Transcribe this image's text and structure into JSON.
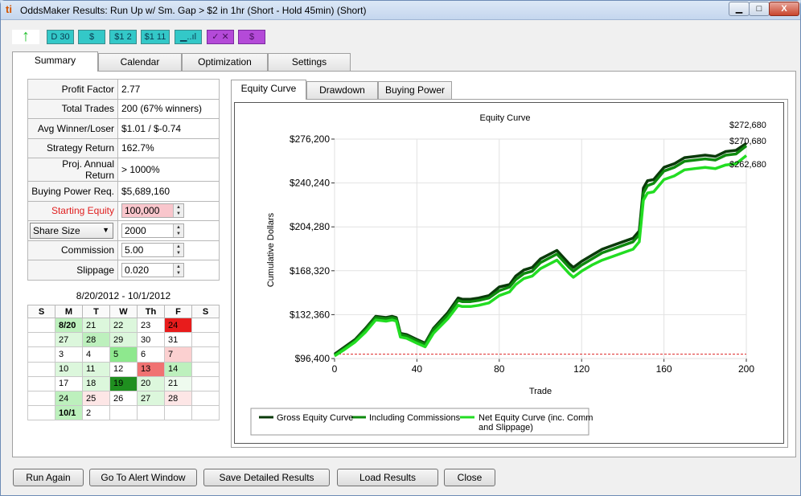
{
  "window": {
    "title": "OddsMaker Results: Run Up w/ Sm. Gap > $2 in 1hr (Short - Hold 45min) (Short)",
    "app_icon_glyph": "ti",
    "min_glyph": "▁",
    "max_glyph": "□",
    "close_glyph": "X"
  },
  "toolbar": {
    "up_glyph": "↑",
    "buttons": [
      {
        "label": "D 30",
        "color": "teal"
      },
      {
        "label": "$",
        "color": "teal"
      },
      {
        "label": "$1 2",
        "color": "teal"
      },
      {
        "label": "$1 11",
        "color": "teal"
      },
      {
        "label": "▁..ıl",
        "color": "teal"
      },
      {
        "label": "✓ ✕",
        "color": "purple"
      },
      {
        "label": "$",
        "color": "purple"
      }
    ]
  },
  "main_tabs": [
    "Summary",
    "Calendar",
    "Optimization",
    "Settings"
  ],
  "stats": {
    "rows": [
      {
        "label": "Profit Factor",
        "value": "2.77"
      },
      {
        "label": "Total Trades",
        "value": "200 (67% winners)"
      },
      {
        "label": "Avg Winner/Loser",
        "value": "$1.01 / $-0.74"
      },
      {
        "label": "Strategy Return",
        "value": "162.7%"
      },
      {
        "label": "Proj. Annual Return",
        "value": "> 1000%"
      },
      {
        "label": "Buying Power Req.",
        "value": "$5,689,160"
      }
    ],
    "starting_equity_label": "Starting Equity",
    "starting_equity": "100,000",
    "share_size_label": "Share Size",
    "share_size": "2000",
    "commission_label": "Commission",
    "commission": "5.00",
    "slippage_label": "Slippage",
    "slippage": "0.020"
  },
  "calendar": {
    "range": "8/20/2012 - 10/1/2012",
    "headers": [
      "S",
      "M",
      "T",
      "W",
      "Th",
      "F",
      "S"
    ],
    "rows": [
      [
        {
          "t": ""
        },
        {
          "t": "8/20",
          "c": "#bdf0bd",
          "b": true
        },
        {
          "t": "21",
          "c": "#dcf7dc"
        },
        {
          "t": "22",
          "c": "#dcf7dc"
        },
        {
          "t": "23",
          "c": "#ffffff"
        },
        {
          "t": "24",
          "c": "#e81c1c"
        },
        {
          "t": ""
        }
      ],
      [
        {
          "t": ""
        },
        {
          "t": "27",
          "c": "#dcf7dc"
        },
        {
          "t": "28",
          "c": "#bdf0bd"
        },
        {
          "t": "29",
          "c": "#dcf7dc"
        },
        {
          "t": "30",
          "c": "#ffffff"
        },
        {
          "t": "31",
          "c": "#ffffff"
        },
        {
          "t": ""
        }
      ],
      [
        {
          "t": ""
        },
        {
          "t": "3",
          "c": "#ffffff"
        },
        {
          "t": "4",
          "c": "#ffffff"
        },
        {
          "t": "5",
          "c": "#8ee88e"
        },
        {
          "t": "6",
          "c": "#ffffff"
        },
        {
          "t": "7",
          "c": "#fbd0d0"
        },
        {
          "t": ""
        }
      ],
      [
        {
          "t": ""
        },
        {
          "t": "10",
          "c": "#dcf7dc"
        },
        {
          "t": "11",
          "c": "#dcf7dc"
        },
        {
          "t": "12",
          "c": "#ffffff"
        },
        {
          "t": "13",
          "c": "#f07272"
        },
        {
          "t": "14",
          "c": "#bdf0bd"
        },
        {
          "t": ""
        }
      ],
      [
        {
          "t": ""
        },
        {
          "t": "17",
          "c": "#ffffff"
        },
        {
          "t": "18",
          "c": "#dcf7dc"
        },
        {
          "t": "19",
          "c": "#1f8f1f"
        },
        {
          "t": "20",
          "c": "#dcf7dc"
        },
        {
          "t": "21",
          "c": "#eefaee"
        },
        {
          "t": ""
        }
      ],
      [
        {
          "t": ""
        },
        {
          "t": "24",
          "c": "#bdf0bd"
        },
        {
          "t": "25",
          "c": "#fde6e6"
        },
        {
          "t": "26",
          "c": "#ffffff"
        },
        {
          "t": "27",
          "c": "#dcf7dc"
        },
        {
          "t": "28",
          "c": "#fde6e6"
        },
        {
          "t": ""
        }
      ],
      [
        {
          "t": ""
        },
        {
          "t": "10/1",
          "c": "#bdf0bd",
          "b": true
        },
        {
          "t": "2",
          "c": "#ffffff"
        },
        {
          "t": ""
        },
        {
          "t": ""
        },
        {
          "t": ""
        },
        {
          "t": ""
        }
      ]
    ]
  },
  "chart_tabs": [
    "Equity Curve",
    "Drawdown",
    "Buying Power"
  ],
  "chart_data": {
    "type": "line",
    "title": "Equity Curve",
    "xlabel": "Trade",
    "ylabel": "Cumulative Dollars",
    "xlim": [
      0,
      200
    ],
    "ylim": [
      96400,
      276200
    ],
    "xticks": [
      0,
      40,
      80,
      120,
      160,
      200
    ],
    "yticks": [
      96400,
      132360,
      168320,
      204280,
      240240,
      276200
    ],
    "ytick_labels": [
      "$96,400",
      "$132,360",
      "$168,320",
      "$204,280",
      "$240,240",
      "$276,200"
    ],
    "grid": true,
    "legend_position": "bottom",
    "baseline": 100000,
    "end_labels": [
      "$272,680",
      "$270,680",
      "$262,680"
    ],
    "series": [
      {
        "name": "Gross Equity Curve",
        "color": "#0a3a0a",
        "x": [
          0,
          5,
          10,
          15,
          20,
          25,
          28,
          30,
          32,
          35,
          40,
          44,
          48,
          55,
          60,
          62,
          66,
          70,
          75,
          80,
          85,
          88,
          92,
          96,
          100,
          108,
          114,
          116,
          120,
          125,
          130,
          135,
          140,
          145,
          148,
          150,
          152,
          155,
          160,
          165,
          170,
          175,
          180,
          185,
          190,
          195,
          200
        ],
        "y": [
          100000,
          106000,
          112000,
          121000,
          131000,
          130000,
          131000,
          130000,
          117000,
          116000,
          112000,
          109000,
          121000,
          134000,
          146000,
          145000,
          145000,
          146000,
          148000,
          155000,
          157000,
          164000,
          169000,
          171000,
          178000,
          185000,
          174000,
          171000,
          176000,
          181000,
          186000,
          189000,
          192000,
          195000,
          201000,
          236000,
          242000,
          243000,
          253000,
          256000,
          261000,
          262000,
          263000,
          262000,
          266000,
          267000,
          272680
        ]
      },
      {
        "name": "Including Commissions",
        "color": "#0e8a0e",
        "x": [
          0,
          5,
          10,
          15,
          20,
          25,
          28,
          30,
          32,
          35,
          40,
          44,
          48,
          55,
          60,
          62,
          66,
          70,
          75,
          80,
          85,
          88,
          92,
          96,
          100,
          108,
          114,
          116,
          120,
          125,
          130,
          135,
          140,
          145,
          148,
          150,
          152,
          155,
          160,
          165,
          170,
          175,
          180,
          185,
          190,
          195,
          200
        ],
        "y": [
          99000,
          105000,
          111000,
          120000,
          130000,
          129000,
          130000,
          129000,
          116000,
          115000,
          111000,
          108000,
          120000,
          132000,
          144000,
          143000,
          143000,
          144000,
          146000,
          152000,
          155000,
          161000,
          166000,
          168000,
          175000,
          182000,
          171000,
          168000,
          173000,
          178000,
          183000,
          186000,
          189000,
          192000,
          198000,
          232000,
          238000,
          240000,
          250000,
          253000,
          258000,
          259000,
          260000,
          259000,
          263000,
          264000,
          270680
        ]
      },
      {
        "name": "Net Equity Curve (inc. Comm and Slippage)",
        "color": "#22dd22",
        "x": [
          0,
          5,
          10,
          15,
          20,
          25,
          28,
          30,
          32,
          35,
          40,
          44,
          48,
          55,
          60,
          62,
          66,
          70,
          75,
          80,
          85,
          88,
          92,
          96,
          100,
          108,
          114,
          116,
          120,
          125,
          130,
          135,
          140,
          145,
          148,
          150,
          152,
          155,
          160,
          165,
          170,
          175,
          180,
          185,
          190,
          195,
          200
        ],
        "y": [
          98500,
          104000,
          110000,
          118000,
          128000,
          127000,
          128000,
          127000,
          114000,
          113000,
          109000,
          106000,
          117000,
          129000,
          140000,
          139000,
          139000,
          140000,
          142000,
          148000,
          151000,
          157000,
          162000,
          164000,
          170000,
          177000,
          166000,
          163000,
          168000,
          173000,
          177000,
          180000,
          183000,
          186000,
          192000,
          226000,
          232000,
          233000,
          243000,
          246000,
          251000,
          252000,
          253000,
          252000,
          255000,
          256000,
          262680
        ]
      }
    ],
    "baseline_color": "#e03030"
  },
  "bottom_buttons": [
    "Run Again",
    "Go To Alert Window",
    "Save Detailed Results",
    "Load Results",
    "Close"
  ]
}
